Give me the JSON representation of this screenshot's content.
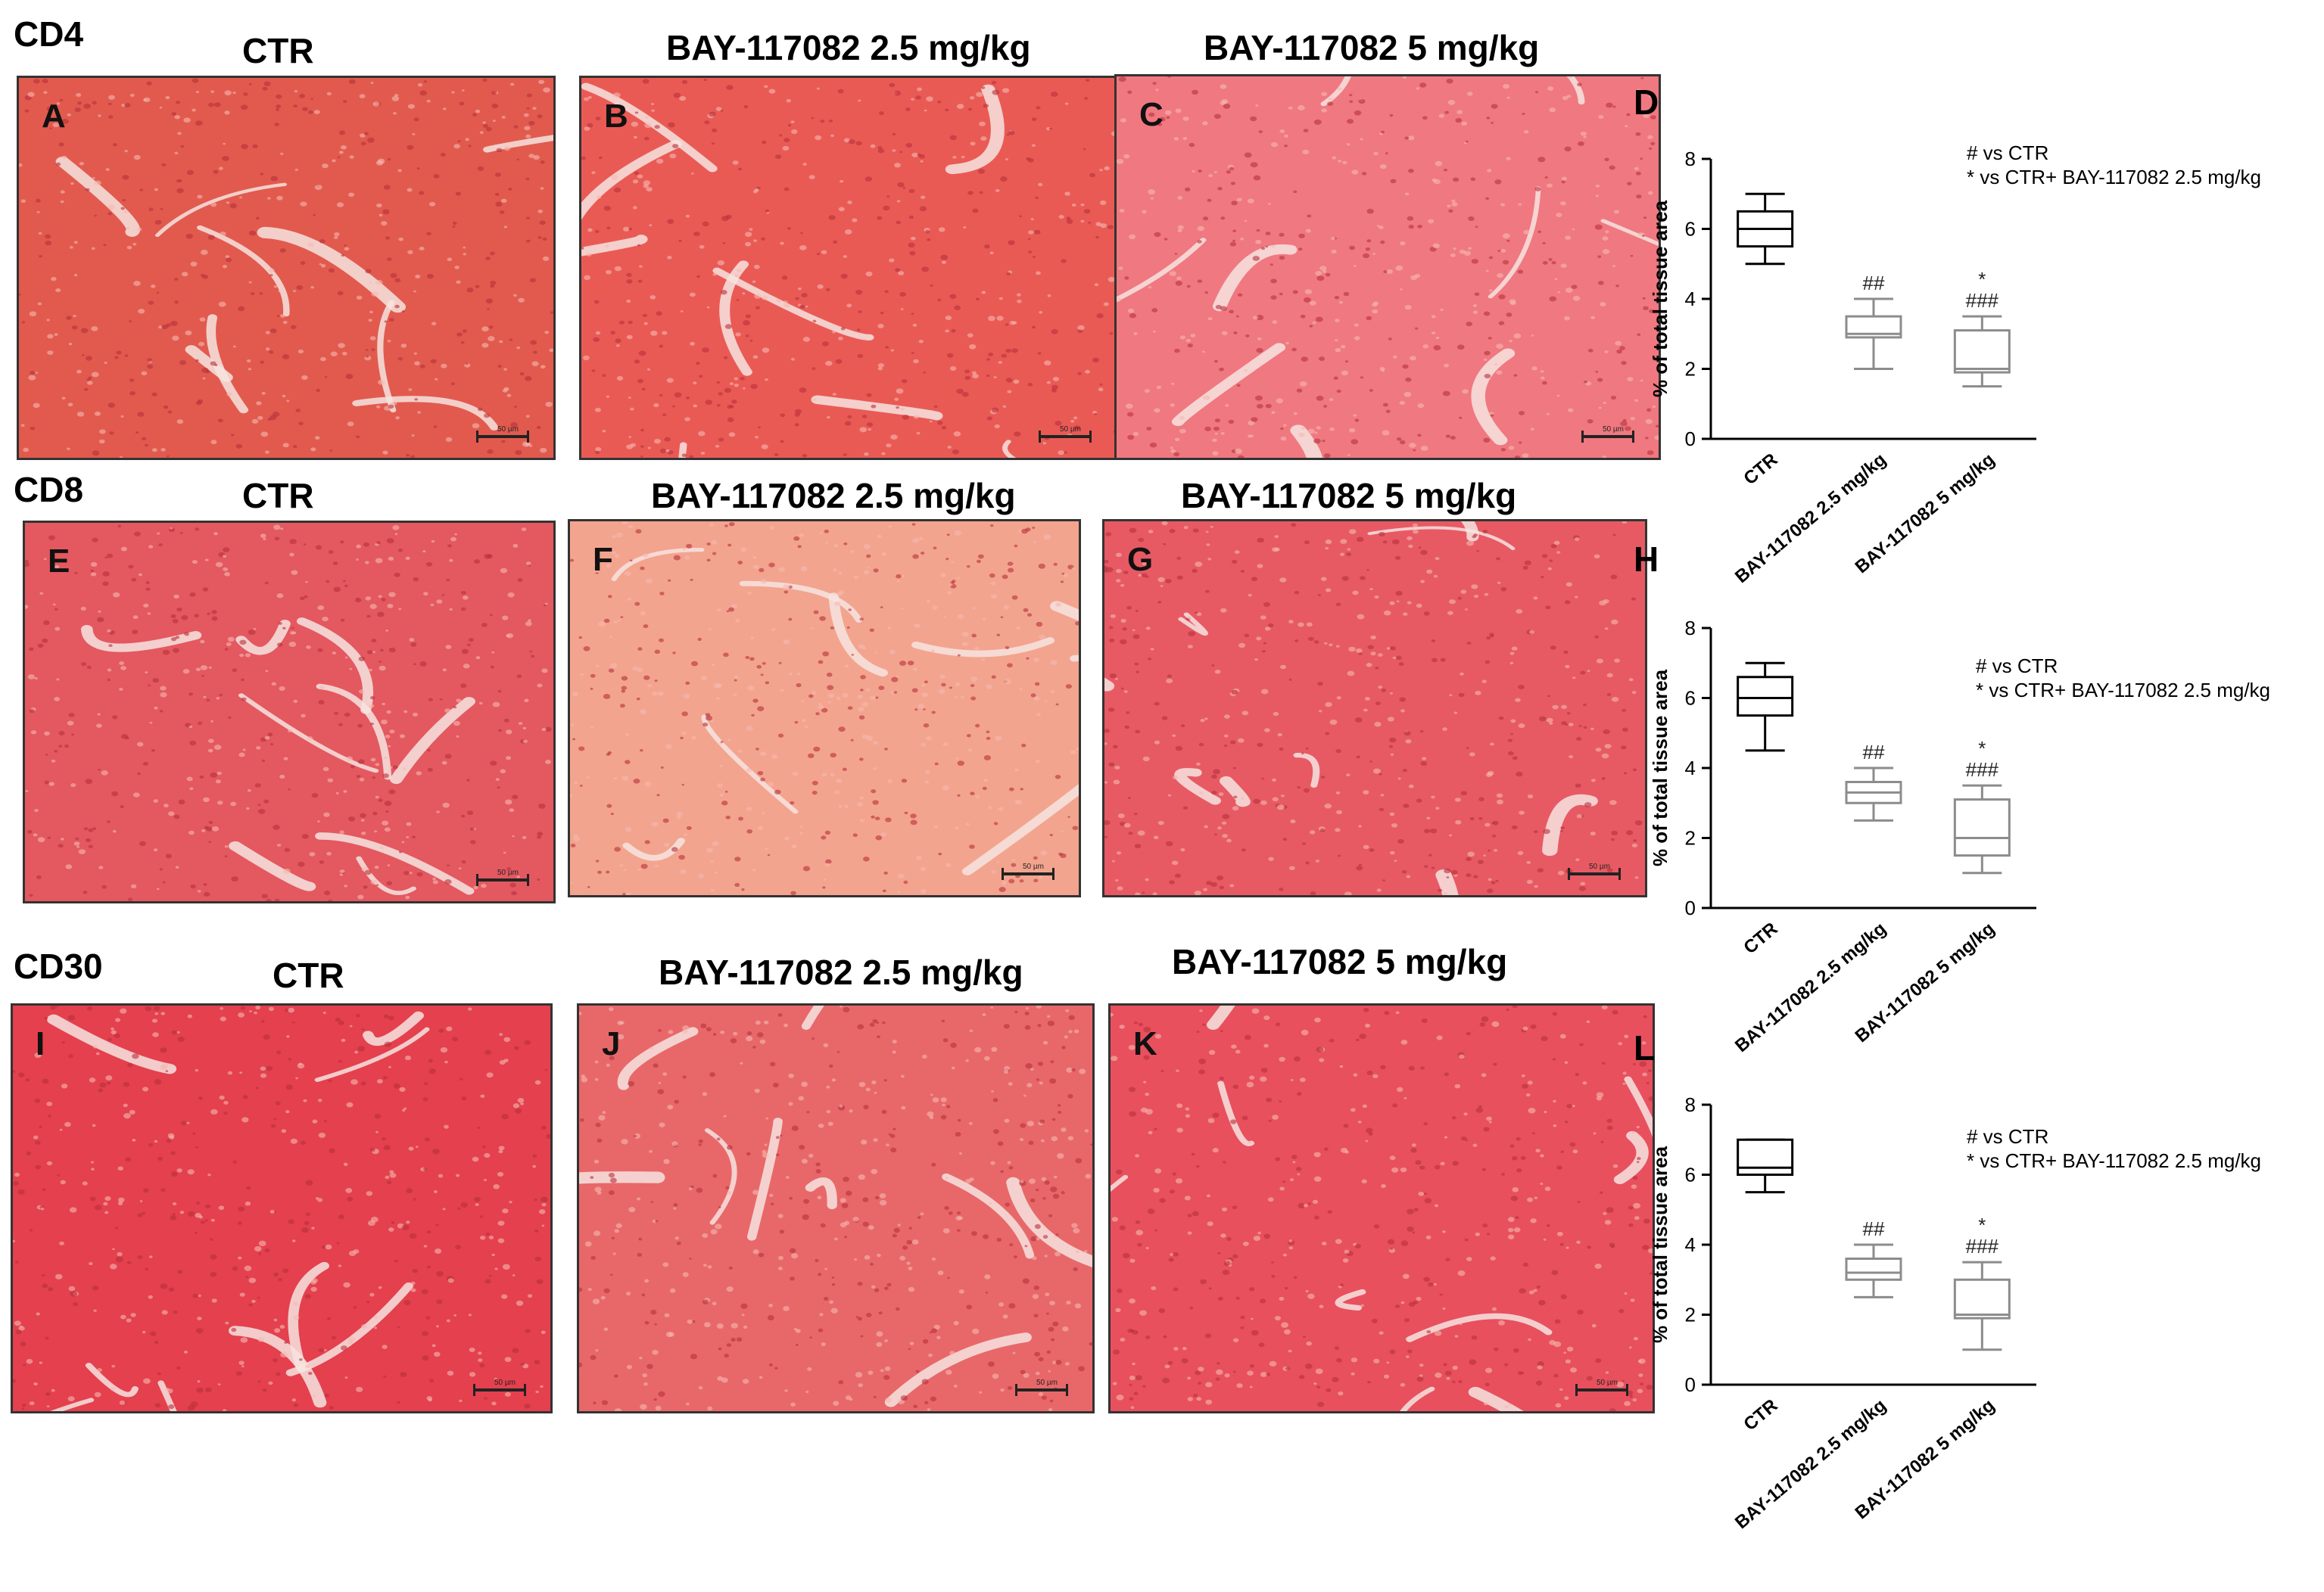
{
  "rows": [
    {
      "label": "CD4",
      "titles": [
        "CTR",
        "BAY-117082 2.5 mg/kg",
        "BAY-117082 5 mg/kg"
      ],
      "letters": [
        "A",
        "B",
        "C"
      ],
      "chart_letter": "D",
      "scale_text": "50 µm",
      "palette": [
        "#e25a4e",
        "#ea5a55",
        "#f07880"
      ]
    },
    {
      "label": "CD8",
      "titles": [
        "CTR",
        "BAY-117082 2.5 mg/kg",
        "BAY-117082 5 mg/kg"
      ],
      "letters": [
        "E",
        "F",
        "G"
      ],
      "chart_letter": "H",
      "scale_text": "50 µm",
      "palette": [
        "#e45860",
        "#f3a48e",
        "#e75a64"
      ]
    },
    {
      "label": "CD30",
      "titles": [
        "CTR",
        "BAY-117082 2.5 mg/kg",
        "BAY-117082 5 mg/kg"
      ],
      "letters": [
        "I",
        "J",
        "K"
      ],
      "chart_letter": "L",
      "scale_text": "50 µm",
      "palette": [
        "#e4404e",
        "#e8686a",
        "#e8505e"
      ]
    }
  ],
  "legend": {
    "line1": "# vs CTR",
    "line2": "* vs CTR+ BAY-117082 2.5 mg/kg"
  },
  "chart_data": [
    {
      "type": "box",
      "ylabel": "% of total tissue area",
      "ylim": [
        0,
        8
      ],
      "yticks": [
        0,
        2,
        4,
        6,
        8
      ],
      "categories": [
        "CTR",
        "BAY-117082 2.5 mg/kg",
        "BAY-117082 5 mg/kg"
      ],
      "boxes": [
        {
          "min": 5.0,
          "q1": 5.5,
          "median": 6.0,
          "q3": 6.5,
          "max": 7.0,
          "color": "#000000",
          "annotation": []
        },
        {
          "min": 2.0,
          "q1": 2.9,
          "median": 3.0,
          "q3": 3.5,
          "max": 4.0,
          "color": "#8c8c8c",
          "annotation": [
            "##"
          ]
        },
        {
          "min": 1.5,
          "q1": 1.9,
          "median": 2.0,
          "q3": 3.1,
          "max": 3.5,
          "color": "#8c8c8c",
          "annotation": [
            "*",
            "###"
          ]
        }
      ]
    },
    {
      "type": "box",
      "ylabel": "% of total tissue area",
      "ylim": [
        0,
        8
      ],
      "yticks": [
        0,
        2,
        4,
        6,
        8
      ],
      "categories": [
        "CTR",
        "BAY-117082 2.5 mg/kg",
        "BAY-117082 5 mg/kg"
      ],
      "boxes": [
        {
          "min": 4.5,
          "q1": 5.5,
          "median": 6.0,
          "q3": 6.6,
          "max": 7.0,
          "color": "#000000",
          "annotation": []
        },
        {
          "min": 2.5,
          "q1": 3.0,
          "median": 3.3,
          "q3": 3.6,
          "max": 4.0,
          "color": "#8c8c8c",
          "annotation": [
            "##"
          ]
        },
        {
          "min": 1.0,
          "q1": 1.5,
          "median": 2.0,
          "q3": 3.1,
          "max": 3.5,
          "color": "#8c8c8c",
          "annotation": [
            "*",
            "###"
          ]
        }
      ]
    },
    {
      "type": "box",
      "ylabel": "% of total tissue area",
      "ylim": [
        0,
        8
      ],
      "yticks": [
        0,
        2,
        4,
        6,
        8
      ],
      "categories": [
        "CTR",
        "BAY-117082 2.5 mg/kg",
        "BAY-117082 5 mg/kg"
      ],
      "boxes": [
        {
          "min": 5.5,
          "q1": 6.0,
          "median": 6.2,
          "q3": 7.0,
          "max": 7.0,
          "color": "#000000",
          "annotation": []
        },
        {
          "min": 2.5,
          "q1": 3.0,
          "median": 3.2,
          "q3": 3.6,
          "max": 4.0,
          "color": "#8c8c8c",
          "annotation": [
            "##"
          ]
        },
        {
          "min": 1.0,
          "q1": 1.9,
          "median": 2.0,
          "q3": 3.0,
          "max": 3.5,
          "color": "#8c8c8c",
          "annotation": [
            "*",
            "###"
          ]
        }
      ]
    }
  ]
}
